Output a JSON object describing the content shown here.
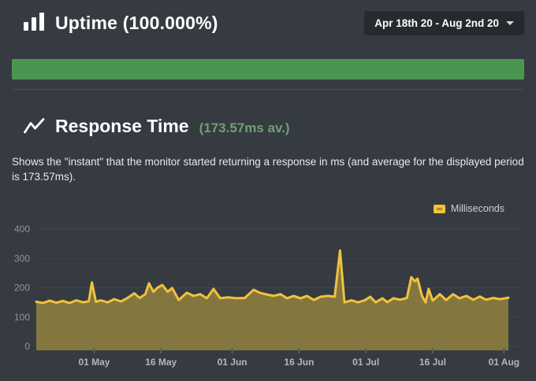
{
  "header": {
    "title": "Uptime (100.000%)",
    "uptime_percent": "100.000%",
    "date_range_label": "Apr 18th 20 - Aug 2nd 20"
  },
  "uptime_bar": {
    "status_color": "#4b9551",
    "fill_percent": 100
  },
  "response_time": {
    "title": "Response Time",
    "average_label": "(173.57ms av.)",
    "average_ms": 173.57,
    "description": "Shows the \"instant\" that the monitor started returning a response in ms (and average for the displayed period is 173.57ms)."
  },
  "chart_data": {
    "type": "area",
    "title": "",
    "xlabel": "",
    "ylabel": "",
    "unit": "ms",
    "legend": [
      "Milliseconds"
    ],
    "legend_position": "top-right",
    "grid": true,
    "ylim": [
      0,
      400
    ],
    "y_ticks": [
      0,
      100,
      200,
      300,
      400
    ],
    "x_ticks": [
      "01 May",
      "16 May",
      "01 Jun",
      "16 Jun",
      "01 Jul",
      "16 Jul",
      "01 Aug"
    ],
    "x_tick_days": [
      13,
      28,
      44,
      59,
      74,
      89,
      105
    ],
    "x_range_days": [
      0,
      106
    ],
    "average_ms": 173.57,
    "colors": {
      "line": "#f0c33c",
      "fill": "#84763f",
      "grid": "#41454b",
      "y_label": "#8f939a",
      "x_label": "#b3b6ba",
      "tick": "#585c62"
    },
    "series": [
      {
        "name": "Milliseconds",
        "points": [
          [
            0,
            152
          ],
          [
            1.5,
            148
          ],
          [
            3,
            156
          ],
          [
            4.5,
            149
          ],
          [
            6,
            155
          ],
          [
            7.5,
            148
          ],
          [
            9,
            157
          ],
          [
            10.5,
            150
          ],
          [
            11.8,
            154
          ],
          [
            12.5,
            218
          ],
          [
            13.4,
            152
          ],
          [
            14.5,
            157
          ],
          [
            16,
            150
          ],
          [
            17.5,
            161
          ],
          [
            19,
            153
          ],
          [
            20.5,
            165
          ],
          [
            22,
            181
          ],
          [
            23.2,
            165
          ],
          [
            24.5,
            178
          ],
          [
            25.3,
            215
          ],
          [
            26.3,
            186
          ],
          [
            27.2,
            200
          ],
          [
            28.3,
            209
          ],
          [
            29.5,
            186
          ],
          [
            30.5,
            199
          ],
          [
            32,
            158
          ],
          [
            33.8,
            183
          ],
          [
            35.3,
            172
          ],
          [
            36.8,
            178
          ],
          [
            38.3,
            164
          ],
          [
            39.8,
            196
          ],
          [
            41.3,
            164
          ],
          [
            43,
            167
          ],
          [
            45,
            164
          ],
          [
            46.8,
            165
          ],
          [
            48.8,
            193
          ],
          [
            50.3,
            182
          ],
          [
            51.8,
            177
          ],
          [
            53.3,
            172
          ],
          [
            54.8,
            178
          ],
          [
            56.3,
            164
          ],
          [
            57.8,
            172
          ],
          [
            59.3,
            164
          ],
          [
            60.8,
            172
          ],
          [
            62.3,
            158
          ],
          [
            63.8,
            169
          ],
          [
            65.5,
            172
          ],
          [
            67,
            169
          ],
          [
            68.2,
            327
          ],
          [
            69.2,
            150
          ],
          [
            70.8,
            157
          ],
          [
            72.2,
            150
          ],
          [
            73.7,
            157
          ],
          [
            75,
            169
          ],
          [
            76.2,
            150
          ],
          [
            77.7,
            164
          ],
          [
            78.8,
            151
          ],
          [
            80.2,
            164
          ],
          [
            81.7,
            159
          ],
          [
            83.2,
            165
          ],
          [
            84.2,
            236
          ],
          [
            85,
            222
          ],
          [
            85.6,
            231
          ],
          [
            86.6,
            172
          ],
          [
            87.4,
            150
          ],
          [
            88.1,
            196
          ],
          [
            89,
            156
          ],
          [
            90.6,
            178
          ],
          [
            92,
            158
          ],
          [
            93.6,
            178
          ],
          [
            95,
            164
          ],
          [
            96.6,
            172
          ],
          [
            98.1,
            159
          ],
          [
            99.6,
            170
          ],
          [
            101,
            159
          ],
          [
            102.6,
            165
          ],
          [
            104.1,
            161
          ],
          [
            106,
            166
          ]
        ]
      }
    ]
  }
}
